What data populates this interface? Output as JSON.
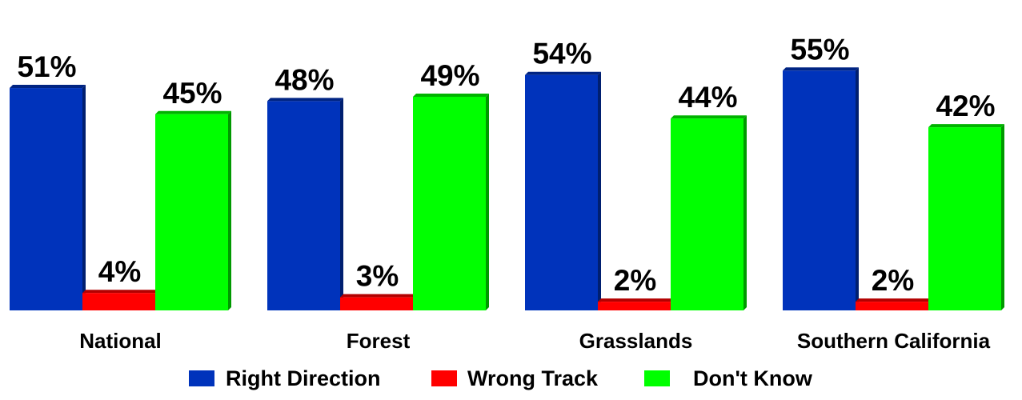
{
  "chart_data": {
    "type": "bar",
    "categories": [
      "National",
      "Forest",
      "Grasslands",
      "Southern California"
    ],
    "series": [
      {
        "name": "Right Direction",
        "color": "#0033BB",
        "values": [
          51,
          48,
          54,
          55
        ]
      },
      {
        "name": "Wrong Track",
        "color": "#FF0000",
        "values": [
          4,
          3,
          2,
          2
        ]
      },
      {
        "name": "Don't Know",
        "color": "#00FF00",
        "values": [
          45,
          49,
          44,
          42
        ]
      }
    ],
    "value_suffix": "%",
    "title": "",
    "xlabel": "",
    "ylabel": "",
    "ylim": [
      0,
      60
    ],
    "grid": false,
    "legend_position": "bottom"
  }
}
